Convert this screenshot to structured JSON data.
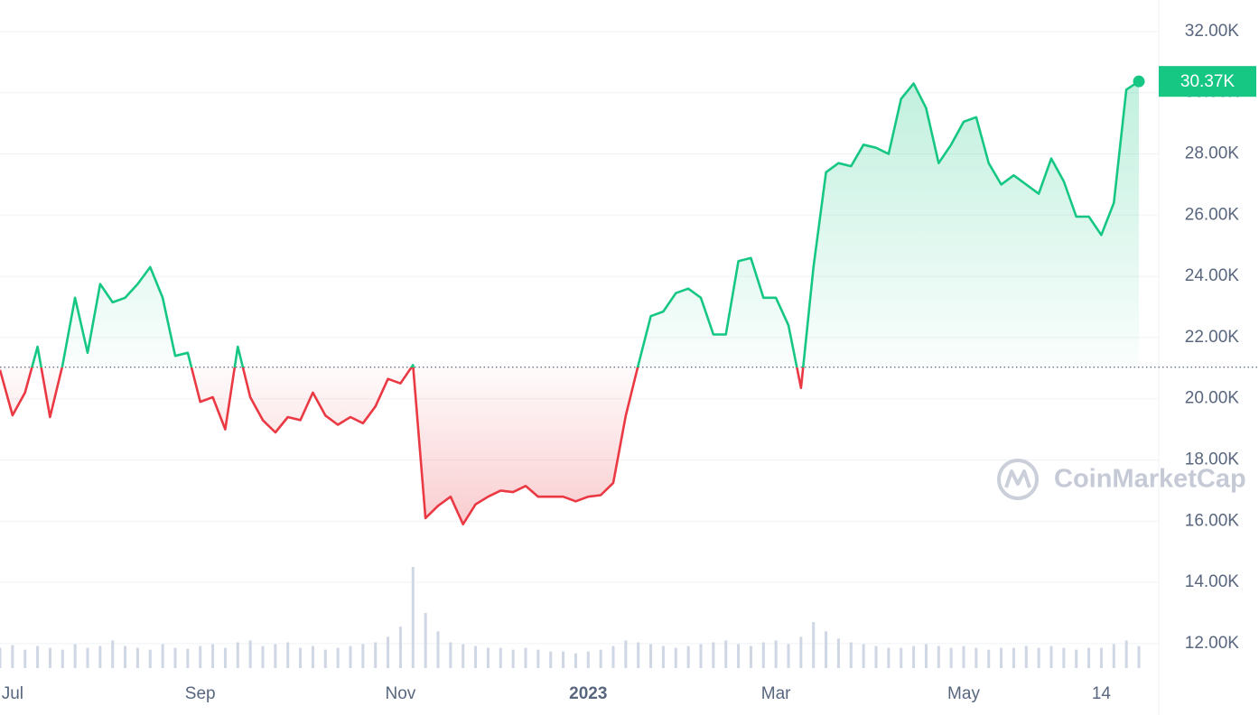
{
  "chart_data": {
    "type": "line",
    "categories": [
      null,
      "Jul",
      null,
      null,
      null,
      null,
      null,
      null,
      null,
      null,
      null,
      null,
      null,
      null,
      null,
      null,
      "Sep",
      null,
      null,
      null,
      null,
      null,
      null,
      null,
      null,
      null,
      null,
      null,
      null,
      null,
      null,
      null,
      "Nov",
      null,
      null,
      null,
      null,
      null,
      null,
      null,
      null,
      null,
      null,
      null,
      null,
      null,
      null,
      "2023",
      null,
      null,
      null,
      null,
      null,
      null,
      null,
      null,
      null,
      null,
      null,
      null,
      null,
      null,
      "Mar",
      null,
      null,
      null,
      null,
      null,
      null,
      null,
      null,
      null,
      null,
      null,
      null,
      null,
      null,
      "May",
      null,
      null,
      null,
      null,
      null,
      null,
      null,
      null,
      null,
      null,
      "14",
      null,
      null,
      null
    ],
    "values": [
      20940,
      19460,
      20200,
      21700,
      19400,
      21100,
      23300,
      21500,
      23750,
      23150,
      23300,
      23750,
      24300,
      23300,
      21400,
      21500,
      19900,
      20050,
      19000,
      21700,
      20050,
      19300,
      18900,
      19400,
      19300,
      20200,
      19450,
      19150,
      19400,
      19200,
      19750,
      20650,
      20500,
      21100,
      16100,
      16500,
      16800,
      15900,
      16550,
      16800,
      17000,
      16950,
      17150,
      16800,
      16800,
      16800,
      16650,
      16800,
      16850,
      17250,
      19450,
      21100,
      22700,
      22850,
      23450,
      23600,
      23300,
      22100,
      22100,
      24500,
      24600,
      23300,
      23300,
      22400,
      20350,
      24300,
      27400,
      27700,
      27600,
      28300,
      28200,
      28000,
      29800,
      30300,
      29500,
      27700,
      28300,
      29050,
      29200,
      27700,
      27000,
      27300,
      27000,
      26700,
      27850,
      27100,
      25950,
      25950,
      25350,
      26400,
      30100,
      30370
    ],
    "volume": [
      22,
      25,
      20,
      24,
      22,
      20,
      26,
      22,
      24,
      30,
      24,
      22,
      20,
      26,
      22,
      21,
      24,
      26,
      22,
      28,
      30,
      24,
      26,
      28,
      22,
      24,
      20,
      22,
      24,
      26,
      28,
      34,
      45,
      110,
      60,
      40,
      28,
      26,
      24,
      22,
      22,
      20,
      22,
      20,
      18,
      18,
      16,
      18,
      20,
      24,
      30,
      28,
      26,
      24,
      22,
      24,
      26,
      28,
      30,
      26,
      24,
      28,
      30,
      26,
      34,
      50,
      40,
      32,
      28,
      26,
      24,
      22,
      22,
      24,
      26,
      24,
      22,
      24,
      22,
      20,
      22,
      22,
      24,
      22,
      24,
      22,
      20,
      22,
      22,
      26,
      30,
      24
    ],
    "baseline": 21030,
    "up_color": "#16c784",
    "down_color": "#ea3943",
    "volume_color": "#cfd6e4",
    "price_tag": "30.37K",
    "watermark": "CoinMarketCap",
    "ylim": [
      11200,
      33030
    ],
    "yticks": [
      {
        "value": 12000,
        "label": "12.00K"
      },
      {
        "value": 14000,
        "label": "14.00K"
      },
      {
        "value": 16000,
        "label": "16.00K"
      },
      {
        "value": 18000,
        "label": "18.00K"
      },
      {
        "value": 20000,
        "label": "20.00K"
      },
      {
        "value": 22000,
        "label": "22.00K"
      },
      {
        "value": 24000,
        "label": "24.00K"
      },
      {
        "value": 26000,
        "label": "26.00K"
      },
      {
        "value": 28000,
        "label": "28.00K"
      },
      {
        "value": 30000,
        "label": "30.00K"
      },
      {
        "value": 32000,
        "label": "32.00K"
      }
    ],
    "grid": true
  }
}
